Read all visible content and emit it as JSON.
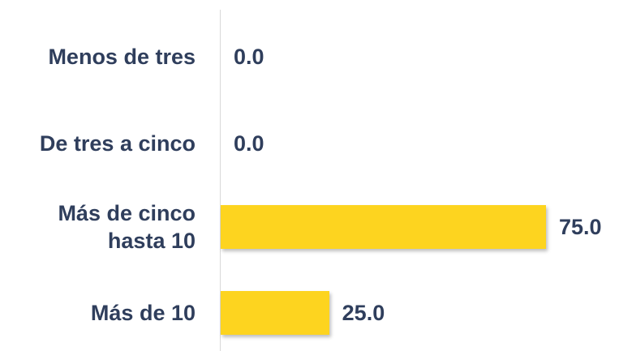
{
  "chart_data": {
    "type": "bar",
    "orientation": "horizontal",
    "categories": [
      "Menos de tres",
      "De tres a cinco",
      "Más de cinco hasta 10",
      "Más de 10"
    ],
    "values": [
      0,
      0,
      75,
      25
    ],
    "value_labels": [
      "0.0",
      "0.0",
      "75.0",
      "25.0"
    ],
    "color": "#fdd41f"
  }
}
